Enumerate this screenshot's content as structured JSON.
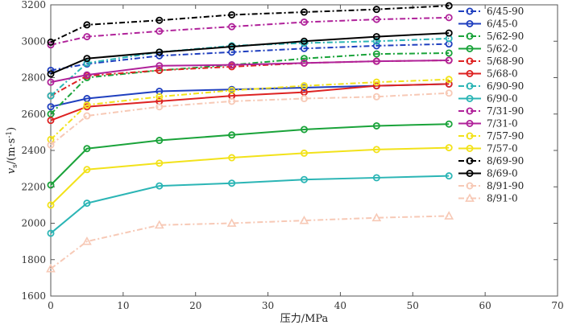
{
  "chart_data": {
    "type": "line",
    "title": "",
    "xlabel": "压力/MPa",
    "ylabel_main": "v",
    "ylabel_sub": "s",
    "ylabel_unit": "/(m·s",
    "ylabel_unit_exp": "-1",
    "ylabel_unit_close": ")",
    "xlim": [
      0,
      70
    ],
    "ylim": [
      1600,
      3200
    ],
    "xticks": [
      0,
      10,
      20,
      30,
      40,
      50,
      60,
      70
    ],
    "yticks": [
      1600,
      1800,
      2000,
      2200,
      2400,
      2600,
      2800,
      3000,
      3200
    ],
    "grid": false,
    "legend_position": "right",
    "x": [
      0,
      5,
      15,
      25,
      35,
      45,
      55
    ],
    "series": [
      {
        "name": "6/45-90",
        "color": "#1f3fbf",
        "dash": "dashdot",
        "marker": "circle",
        "values": [
          2840,
          2875,
          2920,
          2940,
          2960,
          2975,
          2985
        ]
      },
      {
        "name": "6/45-0",
        "color": "#1f3fbf",
        "dash": "solid",
        "marker": "circle",
        "values": [
          2640,
          2685,
          2725,
          2735,
          2745,
          2755,
          2765
        ]
      },
      {
        "name": "5/62-90",
        "color": "#1aa33a",
        "dash": "dashdot",
        "marker": "circle",
        "values": [
          2600,
          2800,
          2840,
          2870,
          2905,
          2930,
          2935
        ]
      },
      {
        "name": "5/62-0",
        "color": "#1aa33a",
        "dash": "solid",
        "marker": "circle",
        "values": [
          2210,
          2410,
          2455,
          2485,
          2515,
          2535,
          2545
        ]
      },
      {
        "name": "5/68-90",
        "color": "#dd2222",
        "dash": "dashdot",
        "marker": "circle",
        "values": [
          2700,
          2810,
          2840,
          2860,
          2880,
          2890,
          2895
        ]
      },
      {
        "name": "5/68-0",
        "color": "#dd2222",
        "dash": "solid",
        "marker": "circle",
        "values": [
          2565,
          2640,
          2670,
          2700,
          2720,
          2755,
          2765
        ]
      },
      {
        "name": "6/90-90",
        "color": "#2bb5b5",
        "dash": "dashdot",
        "marker": "circle",
        "values": [
          2700,
          2880,
          2940,
          2975,
          2990,
          3000,
          3015
        ]
      },
      {
        "name": "6/90-0",
        "color": "#2bb5b5",
        "dash": "solid",
        "marker": "circle",
        "values": [
          1945,
          2110,
          2205,
          2220,
          2240,
          2250,
          2260
        ]
      },
      {
        "name": "7/31-90",
        "color": "#b0229a",
        "dash": "dashdot",
        "marker": "circle",
        "values": [
          2980,
          3025,
          3055,
          3080,
          3105,
          3120,
          3130
        ]
      },
      {
        "name": "7/31-0",
        "color": "#b0229a",
        "dash": "solid",
        "marker": "circle",
        "values": [
          2775,
          2815,
          2865,
          2870,
          2880,
          2890,
          2895
        ]
      },
      {
        "name": "7/57-90",
        "color": "#f2e21a",
        "dash": "dashdot",
        "marker": "circle",
        "values": [
          2460,
          2650,
          2695,
          2730,
          2755,
          2775,
          2790
        ]
      },
      {
        "name": "7/57-0",
        "color": "#f2e21a",
        "dash": "solid",
        "marker": "circle",
        "values": [
          2100,
          2295,
          2330,
          2360,
          2385,
          2405,
          2415
        ]
      },
      {
        "name": "8/69-90",
        "color": "#000000",
        "dash": "dashdot",
        "marker": "circle",
        "values": [
          2995,
          3090,
          3115,
          3145,
          3160,
          3175,
          3195
        ]
      },
      {
        "name": "8/69-0",
        "color": "#000000",
        "dash": "solid",
        "marker": "circle",
        "values": [
          2820,
          2905,
          2940,
          2970,
          3000,
          3025,
          3045
        ]
      },
      {
        "name": "8/91-90",
        "color": "#f7c9b6",
        "dash": "dashdot",
        "marker": "circle",
        "values": [
          2430,
          2590,
          2640,
          2670,
          2685,
          2695,
          2715
        ]
      },
      {
        "name": "8/91-0",
        "color": "#f7c9b6",
        "dash": "dashdot",
        "marker": "triangle",
        "values": [
          1750,
          1900,
          1990,
          2000,
          2015,
          2030,
          2040
        ]
      }
    ]
  }
}
